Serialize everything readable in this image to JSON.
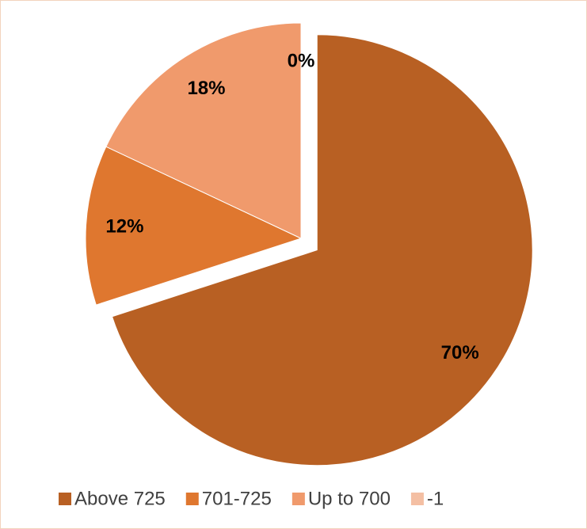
{
  "chart_data": {
    "type": "pie",
    "categories": [
      "Above 725",
      "701-725",
      "Up to 700",
      "-1"
    ],
    "values": [
      70,
      12,
      18,
      0
    ],
    "value_labels": [
      "70%",
      "12%",
      "18%",
      "0%"
    ],
    "colors": [
      "#b86023",
      "#df772f",
      "#f09a6c",
      "#f4bfa3"
    ],
    "exploded": [
      true,
      false,
      false,
      false
    ],
    "legend": "bottom"
  }
}
